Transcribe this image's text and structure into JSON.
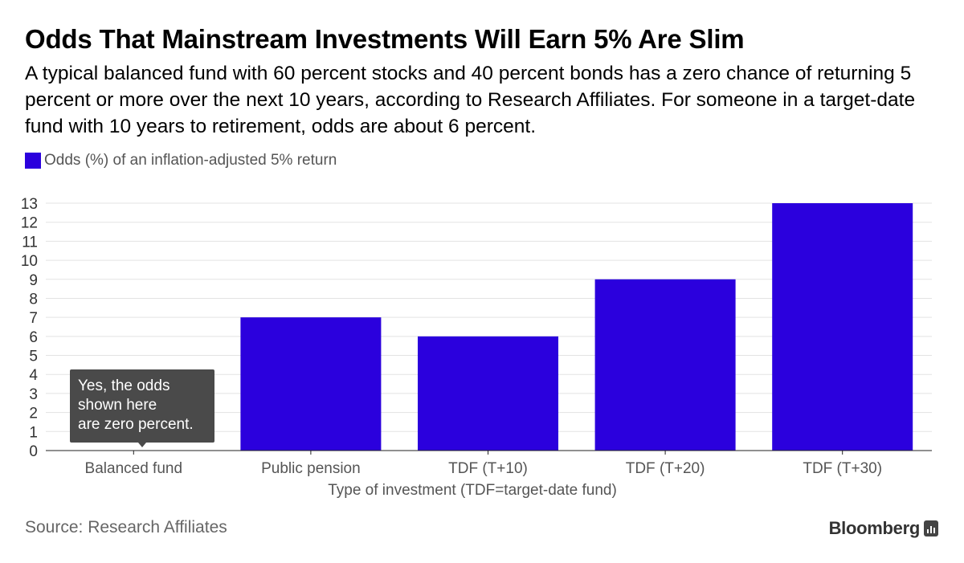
{
  "header": {
    "title": "Odds That Mainstream Investments Will Earn 5% Are Slim",
    "subtitle": "A typical balanced fund with 60 percent stocks and 40 percent bonds has a zero chance of returning 5 percent or more over the next 10 years, according to Research Affiliates. For someone in a target-date fund with 10 years to retirement, odds are about 6 percent."
  },
  "legend": {
    "label": "Odds (%) of an inflation-adjusted 5% return",
    "color": "#2b00dd"
  },
  "tooltip": {
    "line1": "Yes, the odds",
    "line2": "shown here",
    "line3": "are zero percent."
  },
  "footer": {
    "source": "Source: Research Affiliates",
    "brand": "Bloomberg"
  },
  "chart_data": {
    "type": "bar",
    "title": "Odds That Mainstream Investments Will Earn 5% Are Slim",
    "categories": [
      "Balanced fund",
      "Public pension",
      "TDF (T+10)",
      "TDF (T+20)",
      "TDF (T+30)"
    ],
    "series": [
      {
        "name": "Odds (%) of an inflation-adjusted 5% return",
        "values": [
          0,
          7,
          6,
          9,
          13
        ],
        "color": "#2b00dd"
      }
    ],
    "xlabel": "Type of investment (TDF=target-date fund)",
    "ylabel": "",
    "ylim": [
      0,
      13
    ],
    "yticks": [
      0,
      1,
      2,
      3,
      4,
      5,
      6,
      7,
      8,
      9,
      10,
      11,
      12,
      13
    ],
    "grid": true,
    "legend_position": "top-left"
  }
}
